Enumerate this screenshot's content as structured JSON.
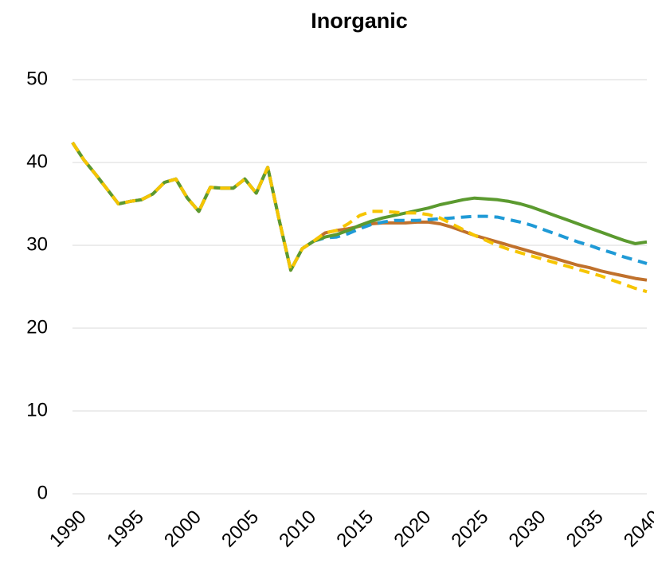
{
  "chart_data": {
    "type": "line",
    "title": "Inorganic",
    "x": [
      1990,
      1991,
      1992,
      1993,
      1994,
      1995,
      1996,
      1997,
      1998,
      1999,
      2000,
      2001,
      2002,
      2003,
      2004,
      2005,
      2006,
      2007,
      2008,
      2009,
      2010,
      2011,
      2012,
      2013,
      2014,
      2015,
      2016,
      2017,
      2018,
      2019,
      2020,
      2021,
      2022,
      2023,
      2024,
      2025,
      2026,
      2027,
      2028,
      2029,
      2030,
      2031,
      2032,
      2033,
      2034,
      2035,
      2036,
      2037,
      2038,
      2039,
      2040
    ],
    "series": [
      {
        "color": "#c0712c",
        "dash": false,
        "values": [
          42.4,
          40.3,
          38.6,
          36.8,
          35.0,
          35.3,
          35.5,
          36.2,
          37.6,
          38.0,
          35.7,
          34.1,
          37.0,
          36.9,
          36.9,
          38.0,
          36.3,
          39.4,
          33.0,
          27.0,
          29.6,
          30.5,
          31.5,
          31.8,
          32.0,
          32.3,
          32.6,
          32.7,
          32.7,
          32.7,
          32.8,
          32.8,
          32.6,
          32.2,
          31.7,
          31.2,
          30.8,
          30.4,
          30.0,
          29.6,
          29.2,
          28.8,
          28.4,
          28.0,
          27.6,
          27.3,
          26.9,
          26.6,
          26.3,
          26.0,
          25.8
        ]
      },
      {
        "color": "#1f9ad6",
        "dash": true,
        "values": [
          42.4,
          40.3,
          38.6,
          36.8,
          35.0,
          35.3,
          35.5,
          36.2,
          37.6,
          38.0,
          35.7,
          34.1,
          37.0,
          36.9,
          36.9,
          38.0,
          36.3,
          39.4,
          33.0,
          27.0,
          29.6,
          30.5,
          30.9,
          31.0,
          31.4,
          32.0,
          32.5,
          32.8,
          33.0,
          33.0,
          33.0,
          33.1,
          33.2,
          33.3,
          33.4,
          33.5,
          33.5,
          33.4,
          33.1,
          32.8,
          32.4,
          31.9,
          31.4,
          30.9,
          30.4,
          30.0,
          29.5,
          29.1,
          28.6,
          28.2,
          27.8
        ]
      },
      {
        "color": "#5b9a2f",
        "dash": false,
        "values": [
          42.4,
          40.3,
          38.6,
          36.8,
          35.0,
          35.3,
          35.5,
          36.2,
          37.6,
          38.0,
          35.7,
          34.1,
          37.0,
          36.9,
          36.9,
          38.0,
          36.3,
          39.4,
          33.0,
          27.0,
          29.6,
          30.5,
          31.0,
          31.3,
          31.8,
          32.4,
          32.9,
          33.3,
          33.6,
          33.9,
          34.2,
          34.5,
          34.9,
          35.2,
          35.5,
          35.7,
          35.6,
          35.5,
          35.3,
          35.0,
          34.6,
          34.1,
          33.6,
          33.1,
          32.6,
          32.1,
          31.6,
          31.1,
          30.6,
          30.2,
          30.4
        ]
      },
      {
        "color": "#f6c500",
        "dash": true,
        "values": [
          42.4,
          40.3,
          38.6,
          36.8,
          35.0,
          35.3,
          35.5,
          36.2,
          37.6,
          38.0,
          35.7,
          34.1,
          37.0,
          36.9,
          36.9,
          38.0,
          36.3,
          39.4,
          33.0,
          27.0,
          29.6,
          30.5,
          31.5,
          31.8,
          32.6,
          33.6,
          34.1,
          34.1,
          34.0,
          33.9,
          33.9,
          33.7,
          33.3,
          32.6,
          31.9,
          31.2,
          30.6,
          30.0,
          29.5,
          29.1,
          28.7,
          28.3,
          27.9,
          27.5,
          27.1,
          26.7,
          26.3,
          25.8,
          25.3,
          24.8,
          24.4
        ]
      }
    ],
    "xlim": [
      1990,
      2040
    ],
    "xticks": [
      1990,
      1995,
      2000,
      2005,
      2010,
      2015,
      2020,
      2025,
      2030,
      2035,
      2040
    ],
    "ylim": [
      0,
      50
    ],
    "yticks": [
      0,
      10,
      20,
      30,
      40,
      50
    ],
    "grid": true
  }
}
